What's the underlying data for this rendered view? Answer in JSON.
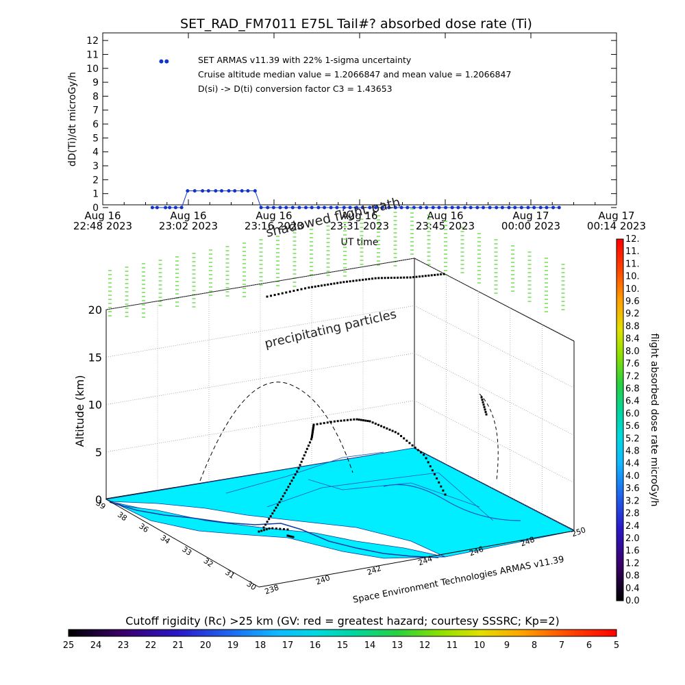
{
  "colors": {
    "series": "#1133cc",
    "land": "#00e5ff",
    "grid": "#888888",
    "particles": "#66dd44"
  },
  "top_chart": {
    "title": "SET_RAD_FM7011  E75L Tail#? absorbed dose rate (Ti)",
    "ylabel": "dD(Ti)/dt microGy/h",
    "xlabel": "UT time",
    "annotations": [
      "SET ARMAS v11.39 with 22% 1-sigma uncertainty",
      "Cruise altitude median value = 1.2066847 and mean value = 1.2066847",
      "D(si) -> D(ti) conversion factor C3 = 1.43653"
    ],
    "y_ticks": [
      "0",
      "1",
      "2",
      "3",
      "4",
      "5",
      "6",
      "7",
      "8",
      "9",
      "10",
      "11",
      "12"
    ],
    "x_ticks": [
      {
        "l1": "Aug 16",
        "l2": "22:48 2023"
      },
      {
        "l1": "Aug 16",
        "l2": "23:02 2023"
      },
      {
        "l1": "Aug 16",
        "l2": "23:16 2023"
      },
      {
        "l1": "Aug 16",
        "l2": "23:31 2023"
      },
      {
        "l1": "Aug 16",
        "l2": "23:45 2023"
      },
      {
        "l1": "Aug 17",
        "l2": "00:00 2023"
      },
      {
        "l1": "Aug 17",
        "l2": "00:14 2023"
      }
    ]
  },
  "chart_data": [
    {
      "type": "line",
      "title": "SET_RAD_FM7011  E75L Tail#? absorbed dose rate (Ti)",
      "xlabel": "UT time",
      "ylabel": "dD(Ti)/dt microGy/h",
      "ylim": [
        0,
        12
      ],
      "xlim": [
        "2023-08-16 22:48",
        "2023-08-17 00:14"
      ],
      "grid": false,
      "series": [
        {
          "x_minutes_from_2248": [
            8.3,
            9.1,
            10.5,
            11.2,
            12.2,
            13.2,
            14.2,
            15.4,
            16.7,
            17.7,
            18.9,
            19.9,
            21.1,
            22.1,
            23.3,
            24.3,
            25.5,
            26.5,
            27.6,
            28.6,
            29.7,
            30.7,
            31.8,
            32.9,
            34.0,
            35.0,
            36.1,
            37.1,
            38.2,
            39.2,
            40.4,
            41.4,
            42.5,
            43.5,
            44.7,
            45.7,
            46.8,
            47.9,
            49.0,
            50.0,
            51.0,
            52.1,
            53.2,
            54.2,
            55.3,
            56.3,
            57.4,
            58.5,
            59.5,
            60.6,
            61.6,
            62.7,
            63.7,
            64.8,
            65.9,
            66.9,
            68.0,
            69.0,
            70.1,
            71.2,
            72.2,
            73.3,
            74.3,
            75.4,
            76.4
          ],
          "values": [
            0,
            0,
            0,
            0,
            0,
            0,
            1.2,
            1.2,
            1.2,
            1.2,
            1.2,
            1.2,
            1.2,
            1.2,
            1.2,
            1.2,
            1.2,
            0,
            0,
            0,
            0,
            0,
            0,
            0,
            0,
            0,
            0,
            0,
            0,
            0,
            0,
            0,
            0,
            0,
            0,
            0,
            0,
            0,
            0,
            0,
            0,
            0,
            0,
            0,
            0,
            0,
            0,
            0,
            0,
            0,
            0,
            0,
            0,
            0,
            0,
            0,
            0,
            0,
            0,
            0,
            0,
            0,
            0,
            0,
            0
          ]
        },
        {
          "x_minutes_from_2248": [
            9.8,
            10.7
          ],
          "values": [
            10.5,
            10.5
          ]
        }
      ]
    },
    {
      "type": "scatter",
      "title": "",
      "zlabel": "Altitude (km)",
      "z_ticks": [
        "0",
        "5",
        "10",
        "15",
        "20"
      ],
      "zlim": [
        0,
        23
      ],
      "lat_ticks": [
        "30",
        "31",
        "32",
        "33",
        "34",
        "36",
        "38",
        "39"
      ],
      "lon_ticks": [
        "238",
        "240",
        "242",
        "244",
        "246",
        "248",
        "250"
      ],
      "labels": [
        "shadowed flight path",
        "precipitating particles",
        "Space Environment Technologies ARMAS v11.39"
      ]
    }
  ],
  "colorbar_right": {
    "label": "flight absorbed dose rate microGy/h",
    "ticks": [
      "0.0",
      "0.4",
      "0.8",
      "1.2",
      "1.6",
      "2.0",
      "2.4",
      "2.8",
      "3.2",
      "3.6",
      "4.0",
      "4.4",
      "4.8",
      "5.2",
      "5.6",
      "6.0",
      "6.4",
      "6.8",
      "7.2",
      "7.6",
      "8.0",
      "8.4",
      "8.8",
      "9.2",
      "9.6",
      "10.",
      "10.",
      "11.",
      "11.",
      "12."
    ]
  },
  "colorbar_bottom": {
    "label": "Cutoff rigidity (Rc) >25 km (GV: red = greatest hazard; courtesy SSSRC; Kp=2)",
    "ticks": [
      "25",
      "24",
      "23",
      "22",
      "21",
      "20",
      "19",
      "18",
      "17",
      "16",
      "15",
      "14",
      "13",
      "12",
      "11",
      "10",
      "9",
      "8",
      "7",
      "6",
      "5"
    ]
  },
  "labels3d": {
    "shadow": "shadowed flight path",
    "particles": "precipitating particles",
    "credit": "Space Environment Technologies ARMAS v11.39"
  }
}
